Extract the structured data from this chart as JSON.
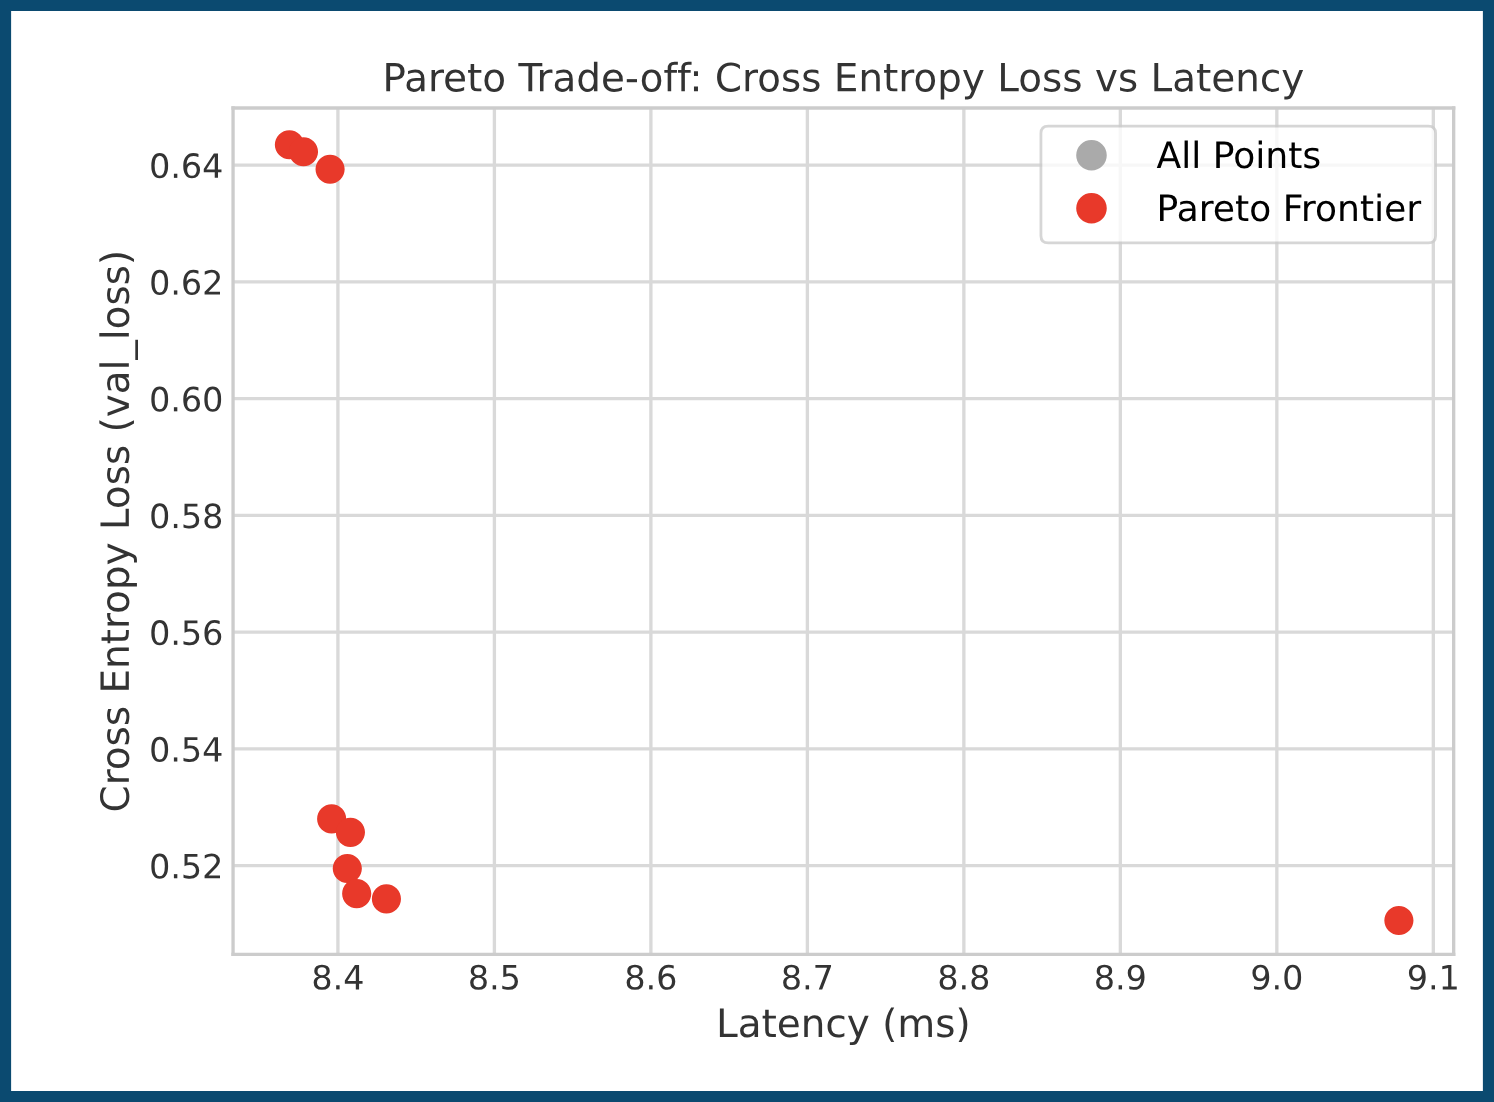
{
  "chart_data": {
    "type": "scatter",
    "title": "Pareto Trade-off: Cross Entropy Loss vs Latency",
    "xlabel": "Latency (ms)",
    "ylabel": "Cross Entropy Loss (val_loss)",
    "series": [
      {
        "name": "All Points",
        "color": "#aaaaaa"
      },
      {
        "name": "Pareto Frontier",
        "color": "#e8392a",
        "x": [
          8.369,
          8.378,
          8.395,
          8.396,
          8.408,
          8.406,
          8.412,
          8.431,
          9.078
        ],
        "values": [
          0.6435,
          0.6423,
          0.6393,
          0.528,
          0.5257,
          0.5195,
          0.5152,
          0.5143,
          0.5106
        ]
      }
    ],
    "xlim": [
      8.333,
      9.113
    ],
    "ylim": [
      0.5048,
      0.6498
    ],
    "xticks": [
      {
        "value": 8.4,
        "label": "8.4"
      },
      {
        "value": 8.5,
        "label": "8.5"
      },
      {
        "value": 8.6,
        "label": "8.6"
      },
      {
        "value": 8.7,
        "label": "8.7"
      },
      {
        "value": 8.8,
        "label": "8.8"
      },
      {
        "value": 8.9,
        "label": "8.9"
      },
      {
        "value": 9.0,
        "label": "9.0"
      },
      {
        "value": 9.1,
        "label": "9.1"
      }
    ],
    "yticks": [
      {
        "value": 0.52,
        "label": "0.52"
      },
      {
        "value": 0.54,
        "label": "0.54"
      },
      {
        "value": 0.56,
        "label": "0.56"
      },
      {
        "value": 0.58,
        "label": "0.58"
      },
      {
        "value": 0.6,
        "label": "0.60"
      },
      {
        "value": 0.62,
        "label": "0.62"
      },
      {
        "value": 0.64,
        "label": "0.64"
      }
    ],
    "grid": true,
    "legend": "top right",
    "marker": "circle"
  }
}
